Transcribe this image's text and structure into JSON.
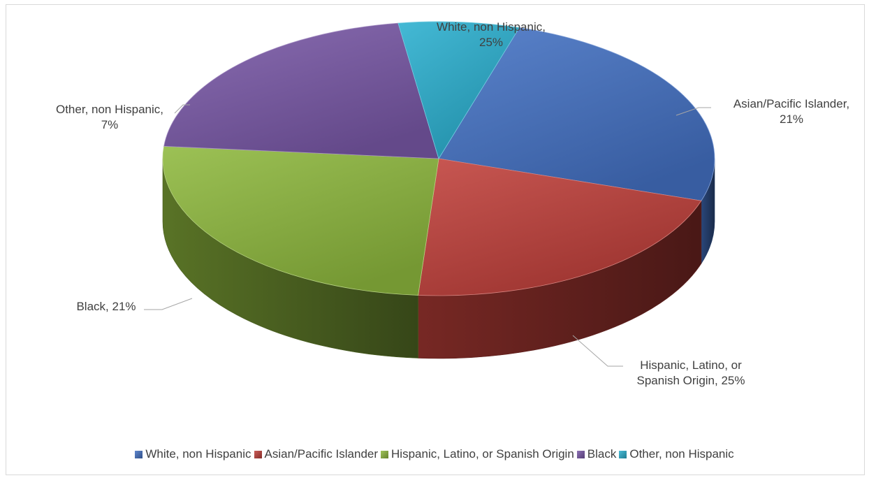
{
  "chart_data": {
    "type": "pie",
    "variant": "3d",
    "title": "",
    "slices": [
      {
        "name": "White, non Hispanic",
        "value": 25,
        "label_lines": [
          "White, non Hispanic,",
          "25%"
        ],
        "color": "#4472c4"
      },
      {
        "name": "Asian/Pacific Islander",
        "value": 21,
        "label_lines": [
          "Asian/Pacific Islander,",
          "21%"
        ],
        "color": "#c0403a"
      },
      {
        "name": "Hispanic, Latino, or Spanish Origin",
        "value": 25,
        "label_lines": [
          "Hispanic, Latino, or",
          "Spanish Origin, 25%"
        ],
        "color": "#8fb93e"
      },
      {
        "name": "Black",
        "value": 21,
        "label_lines": [
          "Black, 21%"
        ],
        "color": "#7a59a8"
      },
      {
        "name": "Other, non Hispanic",
        "value": 7,
        "label_lines": [
          "Other, non Hispanic,",
          "7%"
        ],
        "color": "#2bb0cf"
      }
    ],
    "legend": {
      "position": "bottom",
      "entries": [
        "White, non Hispanic",
        "Asian/Pacific Islander",
        "Hispanic, Latino, or Spanish Origin",
        "Black",
        "Other, non Hispanic"
      ]
    }
  }
}
